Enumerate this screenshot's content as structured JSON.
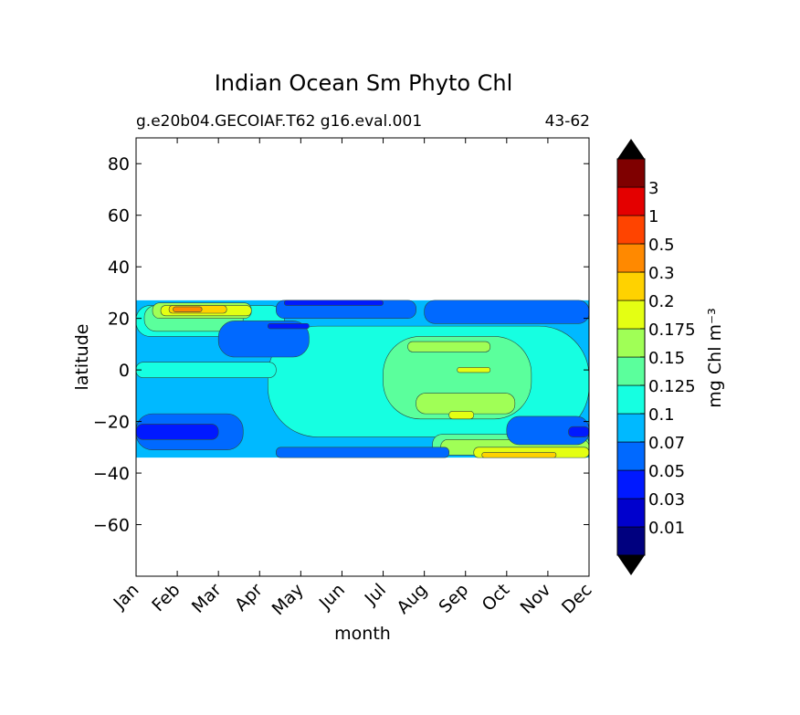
{
  "chart_data": {
    "type": "heatmap",
    "title": "Indian Ocean Sm Phyto Chl",
    "subtitle_left": "g.e20b04.GECOIAF.T62 g16.eval.001",
    "subtitle_right": "43-62",
    "xlabel": "month",
    "ylabel": "latitude",
    "x_categories": [
      "Jan",
      "Feb",
      "Mar",
      "Apr",
      "May",
      "Jun",
      "Jul",
      "Aug",
      "Sep",
      "Oct",
      "Nov",
      "Dec"
    ],
    "xlim": [
      0,
      11
    ],
    "ylim": [
      -80,
      90
    ],
    "y_ticks": [
      80,
      60,
      40,
      20,
      0,
      -20,
      -40,
      -60
    ],
    "y_tick_labels": [
      "80",
      "60",
      "40",
      "20",
      "0",
      "−20",
      "−40",
      "−60"
    ],
    "data_lat_range": [
      -34,
      27
    ],
    "colorbar": {
      "label": "mg Chl m⁻³",
      "extend": "both",
      "levels": [
        0.01,
        0.03,
        0.05,
        0.07,
        0.1,
        0.125,
        0.15,
        0.175,
        0.2,
        0.3,
        0.5,
        1,
        3
      ],
      "tick_labels": [
        "0.01",
        "0.03",
        "0.05",
        "0.07",
        "0.1",
        "0.125",
        "0.15",
        "0.175",
        "0.2",
        "0.3",
        "0.5",
        "1",
        "3"
      ],
      "colors": [
        "#00007f",
        "#0000cd",
        "#0019ff",
        "#0069ff",
        "#00b9ff",
        "#16ffe1",
        "#5bff9c",
        "#a0ff56",
        "#e4ff13",
        "#ffd200",
        "#ff8900",
        "#ff4400",
        "#e40000",
        "#7f0000"
      ]
    },
    "regions": [
      {
        "level": 4,
        "x0": 0.0,
        "x1": 11.0,
        "y0": -34,
        "y1": 27
      },
      {
        "level": 5,
        "x0": 3.2,
        "x1": 11.0,
        "y0": -26,
        "y1": 17
      },
      {
        "level": 5,
        "x0": 0.0,
        "x1": 3.4,
        "y0": -3,
        "y1": 3
      },
      {
        "level": 5,
        "x0": 0.0,
        "x1": 3.6,
        "y0": 13,
        "y1": 25
      },
      {
        "level": 6,
        "x0": 6.0,
        "x1": 9.6,
        "y0": -19,
        "y1": 13
      },
      {
        "level": 6,
        "x0": 7.2,
        "x1": 11.0,
        "y0": -33,
        "y1": -25
      },
      {
        "level": 6,
        "x0": 0.2,
        "x1": 2.6,
        "y0": 15,
        "y1": 25
      },
      {
        "level": 7,
        "x0": 6.6,
        "x1": 8.6,
        "y0": 7,
        "y1": 11
      },
      {
        "level": 7,
        "x0": 6.8,
        "x1": 9.2,
        "y0": -17,
        "y1": -9
      },
      {
        "level": 7,
        "x0": 7.4,
        "x1": 11.0,
        "y0": -33,
        "y1": -27
      },
      {
        "level": 7,
        "x0": 0.4,
        "x1": 2.8,
        "y0": 20,
        "y1": 26
      },
      {
        "level": 8,
        "x0": 7.8,
        "x1": 8.6,
        "y0": -1,
        "y1": 1
      },
      {
        "level": 8,
        "x0": 7.6,
        "x1": 8.2,
        "y0": -19,
        "y1": -16
      },
      {
        "level": 8,
        "x0": 0.6,
        "x1": 2.8,
        "y0": 21,
        "y1": 25
      },
      {
        "level": 8,
        "x0": 8.2,
        "x1": 11.0,
        "y0": -34,
        "y1": -30
      },
      {
        "level": 9,
        "x0": 0.8,
        "x1": 2.2,
        "y0": 22,
        "y1": 25
      },
      {
        "level": 9,
        "x0": 8.4,
        "x1": 10.2,
        "y0": -34,
        "y1": -32
      },
      {
        "level": 10,
        "x0": 0.9,
        "x1": 1.6,
        "y0": 22.5,
        "y1": 24.5
      },
      {
        "level": 3,
        "x0": 0.0,
        "x1": 2.6,
        "y0": -31,
        "y1": -17
      },
      {
        "level": 3,
        "x0": 2.0,
        "x1": 4.2,
        "y0": 5,
        "y1": 19
      },
      {
        "level": 3,
        "x0": 3.4,
        "x1": 6.8,
        "y0": 20,
        "y1": 27
      },
      {
        "level": 3,
        "x0": 9.0,
        "x1": 11.0,
        "y0": -29,
        "y1": -18
      },
      {
        "level": 3,
        "x0": 3.4,
        "x1": 7.6,
        "y0": -34,
        "y1": -30
      },
      {
        "level": 3,
        "x0": 7.0,
        "x1": 11.0,
        "y0": 18,
        "y1": 27
      },
      {
        "level": 2,
        "x0": 0.0,
        "x1": 2.0,
        "y0": -27,
        "y1": -21
      },
      {
        "level": 2,
        "x0": 3.6,
        "x1": 6.0,
        "y0": 25,
        "y1": 27
      },
      {
        "level": 2,
        "x0": 3.2,
        "x1": 4.2,
        "y0": 16,
        "y1": 18
      },
      {
        "level": 2,
        "x0": 10.5,
        "x1": 11.0,
        "y0": -26,
        "y1": -22
      }
    ]
  }
}
